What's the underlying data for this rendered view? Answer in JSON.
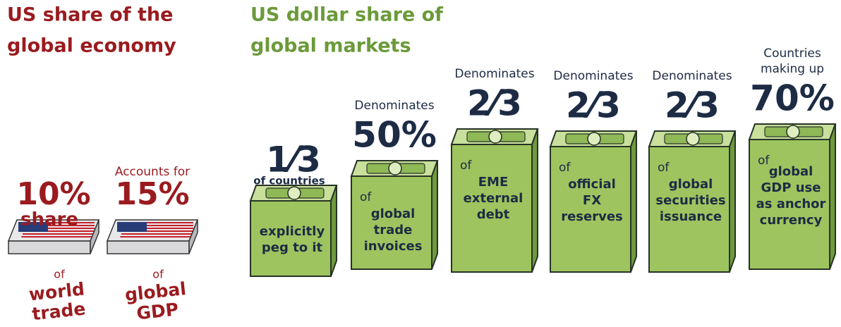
{
  "sections": [
    {
      "title_lines": [
        "US share of the",
        "global economy"
      ],
      "items": [
        {
          "value": "10%",
          "suffix": "share",
          "of": "of",
          "label_lines": [
            "world",
            "trade"
          ]
        },
        {
          "prefix_lines": [
            "Accounts for"
          ],
          "value": "15%",
          "of": "of",
          "label_lines": [
            "global",
            "GDP"
          ]
        }
      ]
    },
    {
      "title_lines": [
        "US dollar share of",
        "global markets"
      ],
      "items": [
        {
          "value": "1⁄3",
          "suffix": "of countries",
          "label_lines": [
            "explicitly",
            "peg to it"
          ]
        },
        {
          "prefix_lines": [
            "Denominates"
          ],
          "value": "50%",
          "of": "of",
          "label_lines": [
            "global",
            "trade",
            "invoices"
          ]
        },
        {
          "prefix_lines": [
            "Denominates"
          ],
          "value": "2⁄3",
          "of": "of",
          "label_lines": [
            "EME",
            "external",
            "debt"
          ]
        },
        {
          "prefix_lines": [
            "Denominates"
          ],
          "value": "2⁄3",
          "of": "of",
          "label_lines": [
            "official",
            "FX",
            "reserves"
          ]
        },
        {
          "prefix_lines": [
            "Denominates"
          ],
          "value": "2⁄3",
          "of": "of",
          "label_lines": [
            "global",
            "securities",
            "issuance"
          ]
        },
        {
          "prefix_lines": [
            "Countries",
            "making up"
          ],
          "value": "70%",
          "of": "of",
          "label_lines": [
            "global",
            "GDP use",
            "as anchor",
            "currency"
          ]
        }
      ]
    }
  ]
}
